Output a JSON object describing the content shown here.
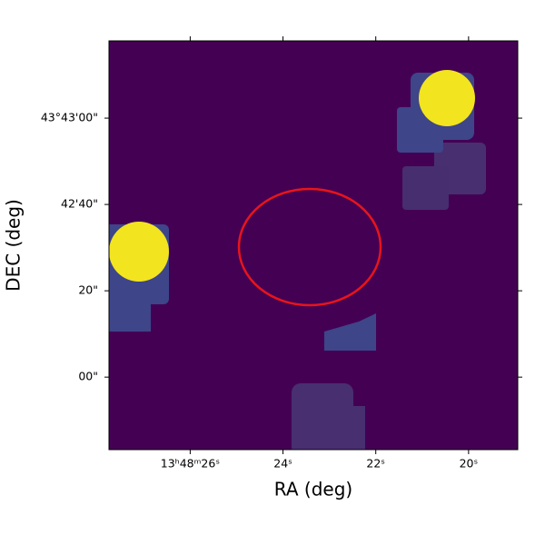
{
  "chart_data": {
    "type": "image",
    "xlabel": "RA (deg)",
    "ylabel": "DEC (deg)",
    "xlim": [
      27.75,
      18.94
    ],
    "ylim": [
      -16.8,
      77.9
    ],
    "xticks": [
      {
        "value": 26,
        "label": "13ʰ48ᵐ26ˢ"
      },
      {
        "value": 24,
        "label": "24ˢ"
      },
      {
        "value": 22,
        "label": "22ˢ"
      },
      {
        "value": 20,
        "label": "20ˢ"
      }
    ],
    "yticks": [
      {
        "value": 60,
        "label": "43°43'00\""
      },
      {
        "value": 40,
        "label": "42'40\""
      },
      {
        "value": 20,
        "label": "20\""
      },
      {
        "value": 0,
        "label": "00\""
      }
    ]
  }
}
